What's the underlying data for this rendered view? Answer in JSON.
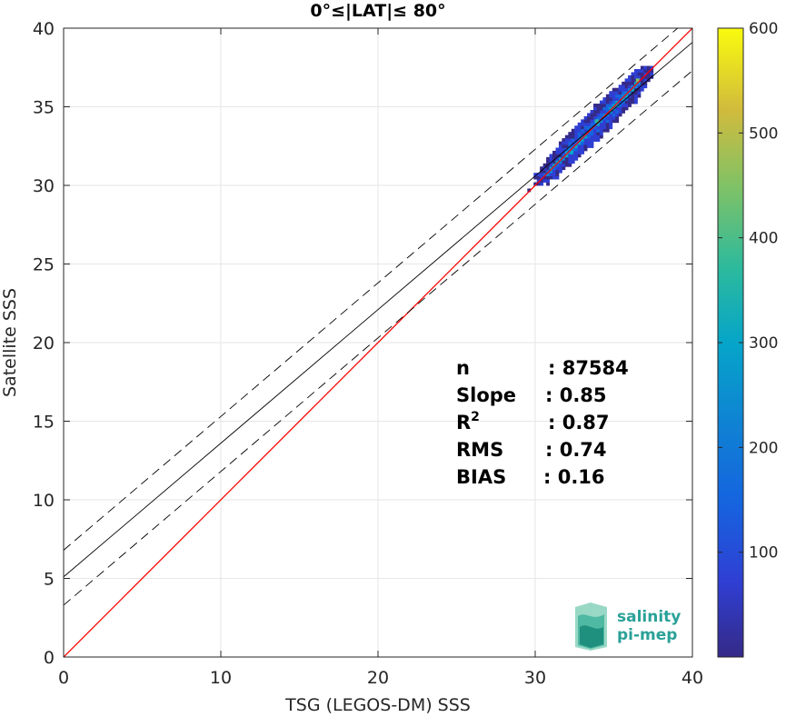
{
  "chart_data": {
    "type": "heatmap",
    "title": "0°≤|LAT|≤ 80°",
    "xlabel": "TSG (LEGOS-DM) SSS",
    "ylabel": "Satellite SSS",
    "xlim": [
      0,
      40
    ],
    "ylim": [
      0,
      40
    ],
    "xticks": [
      0,
      10,
      20,
      30,
      40
    ],
    "yticks": [
      0,
      5,
      10,
      15,
      20,
      25,
      30,
      35,
      40
    ],
    "grid": true,
    "colorbar": {
      "colormap": "parula",
      "range": [
        0,
        600
      ],
      "ticks": [
        100,
        200,
        300,
        400,
        500,
        600
      ]
    },
    "density_cloud": {
      "x_range": [
        28.5,
        37.5
      ],
      "y_range": [
        29.0,
        37.5
      ],
      "peak_count": 600
    },
    "lines": [
      {
        "name": "one-to-one",
        "color": "#ff0000",
        "style": "solid",
        "slope": 1.0,
        "intercept": 0.0
      },
      {
        "name": "regression",
        "color": "#000000",
        "style": "solid",
        "slope": 0.85,
        "intercept": 5.1
      },
      {
        "name": "regression-upper",
        "color": "#000000",
        "style": "dashed",
        "slope": 0.85,
        "intercept": 6.8
      },
      {
        "name": "regression-lower",
        "color": "#000000",
        "style": "dashed",
        "slope": 0.85,
        "intercept": 3.3
      }
    ],
    "stats": [
      {
        "label": "n",
        "value": ": 87584"
      },
      {
        "label": "Slope",
        "value": ": 0.85"
      },
      {
        "label": "R",
        "sup": "2",
        "value": ": 0.87"
      },
      {
        "label": "RMS",
        "value": ": 0.74"
      },
      {
        "label": "BIAS",
        "value": ": 0.16"
      }
    ]
  },
  "logo": {
    "line1": "salinity",
    "line2": "pi-mep"
  }
}
